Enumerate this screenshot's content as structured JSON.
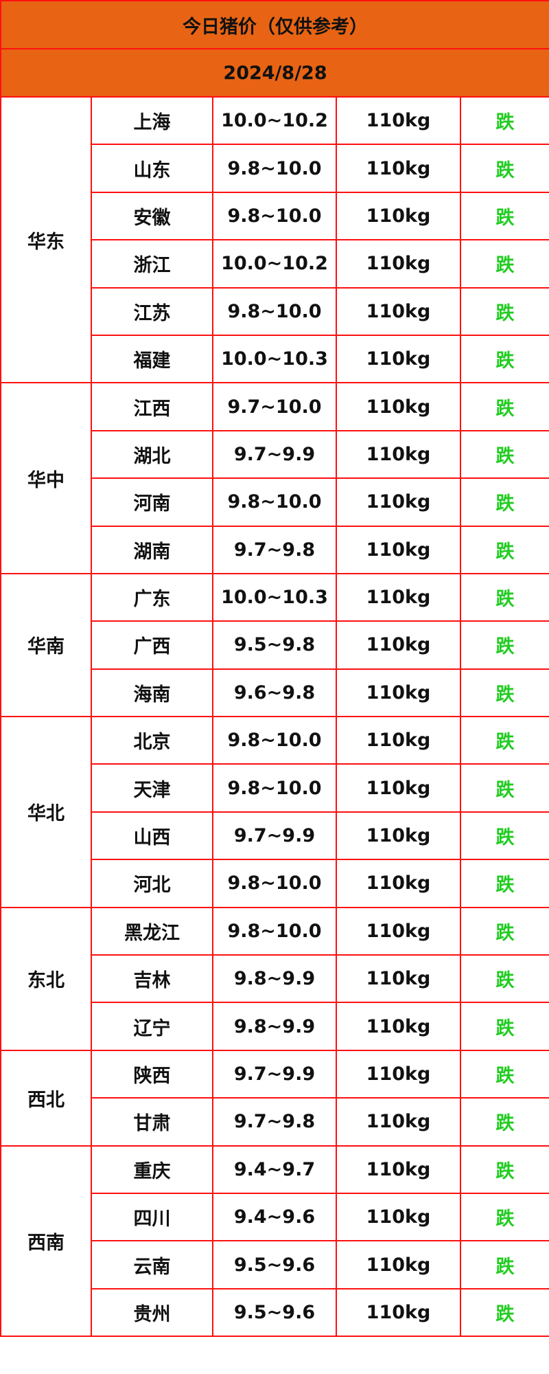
{
  "title": "今日猪价（仅供参考）",
  "date": "2024/8/28",
  "colors": {
    "header_bg": "#e86414",
    "border": "#ff1010",
    "trend_down": "#22cc22"
  },
  "groups": [
    {
      "region": "华东",
      "rows": [
        {
          "province": "上海",
          "price": "10.0~10.2",
          "weight": "110kg",
          "trend": "跌"
        },
        {
          "province": "山东",
          "price": "9.8~10.0",
          "weight": "110kg",
          "trend": "跌"
        },
        {
          "province": "安徽",
          "price": "9.8~10.0",
          "weight": "110kg",
          "trend": "跌"
        },
        {
          "province": "浙江",
          "price": "10.0~10.2",
          "weight": "110kg",
          "trend": "跌"
        },
        {
          "province": "江苏",
          "price": "9.8~10.0",
          "weight": "110kg",
          "trend": "跌"
        },
        {
          "province": "福建",
          "price": "10.0~10.3",
          "weight": "110kg",
          "trend": "跌"
        }
      ]
    },
    {
      "region": "华中",
      "rows": [
        {
          "province": "江西",
          "price": "9.7~10.0",
          "weight": "110kg",
          "trend": "跌"
        },
        {
          "province": "湖北",
          "price": "9.7~9.9",
          "weight": "110kg",
          "trend": "跌"
        },
        {
          "province": "河南",
          "price": "9.8~10.0",
          "weight": "110kg",
          "trend": "跌"
        },
        {
          "province": "湖南",
          "price": "9.7~9.8",
          "weight": "110kg",
          "trend": "跌"
        }
      ]
    },
    {
      "region": "华南",
      "rows": [
        {
          "province": "广东",
          "price": "10.0~10.3",
          "weight": "110kg",
          "trend": "跌"
        },
        {
          "province": "广西",
          "price": "9.5~9.8",
          "weight": "110kg",
          "trend": "跌"
        },
        {
          "province": "海南",
          "price": "9.6~9.8",
          "weight": "110kg",
          "trend": "跌"
        }
      ]
    },
    {
      "region": "华北",
      "rows": [
        {
          "province": "北京",
          "price": "9.8~10.0",
          "weight": "110kg",
          "trend": "跌"
        },
        {
          "province": "天津",
          "price": "9.8~10.0",
          "weight": "110kg",
          "trend": "跌"
        },
        {
          "province": "山西",
          "price": "9.7~9.9",
          "weight": "110kg",
          "trend": "跌"
        },
        {
          "province": "河北",
          "price": "9.8~10.0",
          "weight": "110kg",
          "trend": "跌"
        }
      ]
    },
    {
      "region": "东北",
      "rows": [
        {
          "province": "黑龙江",
          "price": "9.8~10.0",
          "weight": "110kg",
          "trend": "跌"
        },
        {
          "province": "吉林",
          "price": "9.8~9.9",
          "weight": "110kg",
          "trend": "跌"
        },
        {
          "province": "辽宁",
          "price": "9.8~9.9",
          "weight": "110kg",
          "trend": "跌"
        }
      ]
    },
    {
      "region": "西北",
      "rows": [
        {
          "province": "陕西",
          "price": "9.7~9.9",
          "weight": "110kg",
          "trend": "跌"
        },
        {
          "province": "甘肃",
          "price": "9.7~9.8",
          "weight": "110kg",
          "trend": "跌"
        }
      ]
    },
    {
      "region": "西南",
      "rows": [
        {
          "province": "重庆",
          "price": "9.4~9.7",
          "weight": "110kg",
          "trend": "跌"
        },
        {
          "province": "四川",
          "price": "9.4~9.6",
          "weight": "110kg",
          "trend": "跌"
        },
        {
          "province": "云南",
          "price": "9.5~9.6",
          "weight": "110kg",
          "trend": "跌"
        },
        {
          "province": "贵州",
          "price": "9.5~9.6",
          "weight": "110kg",
          "trend": "跌"
        }
      ]
    }
  ]
}
